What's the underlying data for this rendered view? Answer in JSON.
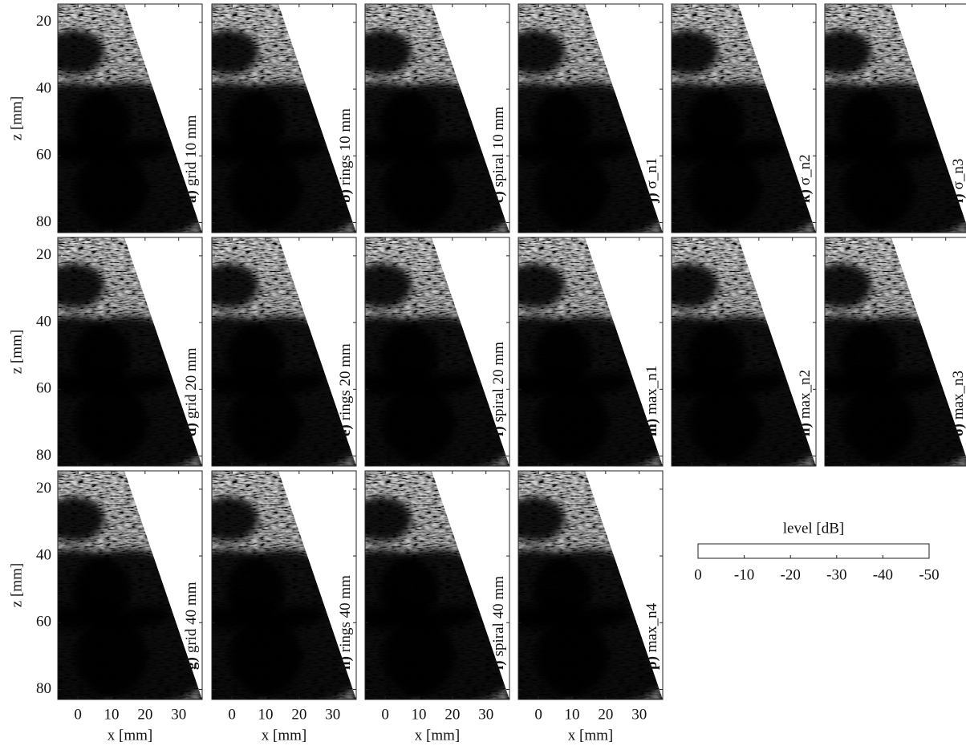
{
  "figure": {
    "xlabel": "x [mm]",
    "zlabel": "z [mm]",
    "xlim": [
      -6,
      37
    ],
    "xticks": [
      0,
      10,
      20,
      30
    ],
    "zlim": [
      14.5,
      83
    ],
    "zticks": [
      20,
      40,
      60,
      80
    ],
    "panels": [
      {
        "letter": "a)",
        "label": "grid 10 mm"
      },
      {
        "letter": "b)",
        "label": "rings 10 mm"
      },
      {
        "letter": "c)",
        "label": "spiral 10 mm"
      },
      {
        "letter": "j)",
        "label": "σ_n1"
      },
      {
        "letter": "k)",
        "label": "σ_n2"
      },
      {
        "letter": "l)",
        "label": "σ_n3"
      },
      {
        "letter": "d)",
        "label": "grid 20 mm"
      },
      {
        "letter": "e)",
        "label": "rings 20 mm"
      },
      {
        "letter": "f)",
        "label": "spiral 20 mm"
      },
      {
        "letter": "m)",
        "label": "max_n1"
      },
      {
        "letter": "n)",
        "label": "max_n2"
      },
      {
        "letter": "o)",
        "label": "max_n3"
      },
      {
        "letter": "g)",
        "label": "grid 40 mm"
      },
      {
        "letter": "h)",
        "label": "rings 40 mm"
      },
      {
        "letter": "i)",
        "label": "spiral 40 mm"
      },
      {
        "letter": "p)",
        "label": "max_n4"
      }
    ],
    "colorbar": {
      "label": "level [dB]",
      "lim": [
        0,
        -50
      ],
      "ticks": [
        0,
        -10,
        -20,
        -30,
        -40,
        -50
      ]
    }
  }
}
